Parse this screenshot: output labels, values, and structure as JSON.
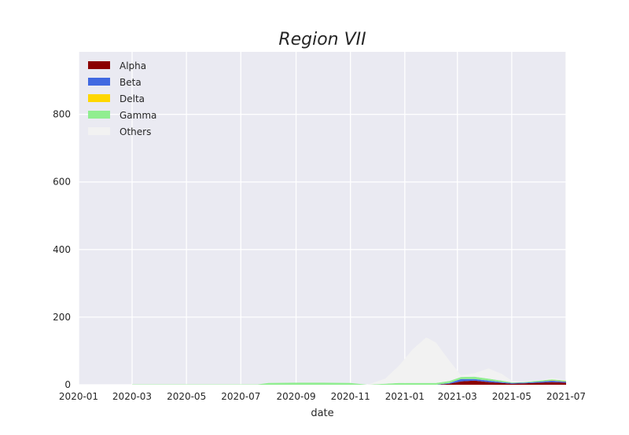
{
  "chart_data": {
    "type": "area",
    "stacked": true,
    "title": "Region VII",
    "xlabel": "date",
    "ylabel": "",
    "ylim": [
      0,
      985
    ],
    "xlim": [
      "2020-01-01",
      "2021-07-01"
    ],
    "x_ticks": [
      "2020-01",
      "2020-03",
      "2020-05",
      "2020-07",
      "2020-09",
      "2020-11",
      "2021-01",
      "2021-03",
      "2021-05",
      "2021-07"
    ],
    "y_ticks": [
      0,
      200,
      400,
      600,
      800
    ],
    "grid": true,
    "legend_position": "top-left",
    "x": [
      "2020-03-01",
      "2020-05-01",
      "2020-07-01",
      "2020-07-20",
      "2020-08-01",
      "2020-09-01",
      "2020-10-01",
      "2020-11-01",
      "2020-11-20",
      "2020-12-10",
      "2020-12-25",
      "2021-01-10",
      "2021-01-25",
      "2021-02-05",
      "2021-02-20",
      "2021-03-05",
      "2021-03-20",
      "2021-04-05",
      "2021-04-20",
      "2021-05-01",
      "2021-05-15",
      "2021-06-01",
      "2021-06-15",
      "2021-07-01"
    ],
    "series": [
      {
        "name": "Alpha",
        "color": "#8b0000",
        "values": [
          0,
          0,
          0,
          0,
          0,
          0,
          0,
          0,
          0,
          0,
          0,
          0,
          0,
          0,
          3,
          10,
          12,
          8,
          5,
          3,
          4,
          6,
          8,
          6
        ]
      },
      {
        "name": "Beta",
        "color": "#4169e1",
        "values": [
          0,
          0,
          0,
          0,
          0,
          0,
          0,
          0,
          0,
          0,
          0,
          0,
          0,
          0,
          2,
          7,
          5,
          4,
          3,
          2,
          2,
          3,
          4,
          3
        ]
      },
      {
        "name": "Delta",
        "color": "#ffd700",
        "values": [
          0,
          0,
          0,
          0,
          0,
          0,
          0,
          0,
          0,
          0,
          0,
          0,
          0,
          0,
          0,
          0,
          0,
          0,
          0,
          0,
          0,
          0,
          1,
          1
        ]
      },
      {
        "name": "Gamma",
        "color": "#90ee90",
        "values": [
          1,
          1,
          1,
          1,
          5,
          6,
          6,
          5,
          0,
          3,
          5,
          5,
          5,
          5,
          6,
          6,
          7,
          6,
          4,
          2,
          2,
          3,
          3,
          2
        ]
      },
      {
        "name": "Others",
        "color": "#f2f2f2",
        "values": [
          0,
          0,
          0,
          0,
          0,
          0,
          0,
          0,
          0,
          15,
          50,
          100,
          135,
          120,
          60,
          5,
          10,
          30,
          20,
          5,
          2,
          2,
          4,
          3
        ]
      }
    ]
  }
}
